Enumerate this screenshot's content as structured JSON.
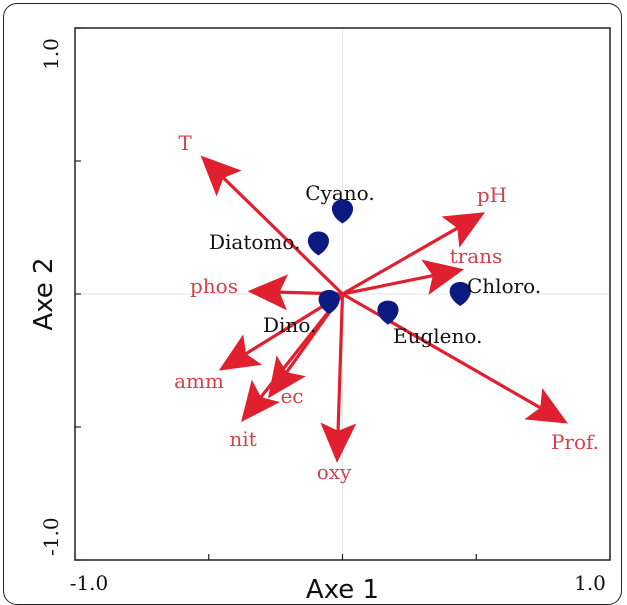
{
  "chart_data": {
    "type": "biplot",
    "xlabel": "Axe 1",
    "ylabel": "Axe 2",
    "xlim": [
      -1.0,
      1.0
    ],
    "ylim": [
      -1.0,
      1.0
    ],
    "x_tick_labels": {
      "min": "-1.0",
      "max": "1.0"
    },
    "y_tick_labels": {
      "min": "-1.0",
      "max": "1.0"
    },
    "grid": false,
    "arrow_color": "#e0202e",
    "label_color": "#d6404a",
    "point_color": "#0b1a80",
    "variables": [
      {
        "name": "T",
        "x": -0.52,
        "y": 0.51
      },
      {
        "name": "pH",
        "x": 0.52,
        "y": 0.3
      },
      {
        "name": "trans",
        "x": 0.44,
        "y": 0.09
      },
      {
        "name": "phos",
        "x": -0.34,
        "y": 0.01
      },
      {
        "name": "amm",
        "x": -0.45,
        "y": -0.28
      },
      {
        "name": "ec",
        "x": -0.27,
        "y": -0.38
      },
      {
        "name": "nit",
        "x": -0.37,
        "y": -0.47
      },
      {
        "name": "oxy",
        "x": -0.02,
        "y": -0.62
      },
      {
        "name": "Prof.",
        "x": 0.83,
        "y": -0.48
      }
    ],
    "species": [
      {
        "name": "Cyano.",
        "x": 0.0,
        "y": 0.31
      },
      {
        "name": "Diatomo.",
        "x": -0.09,
        "y": 0.19
      },
      {
        "name": "Chloro.",
        "x": 0.44,
        "y": 0.0
      },
      {
        "name": "Dino.",
        "x": -0.05,
        "y": -0.03
      },
      {
        "name": "Eugleno.",
        "x": 0.17,
        "y": -0.07
      }
    ]
  }
}
